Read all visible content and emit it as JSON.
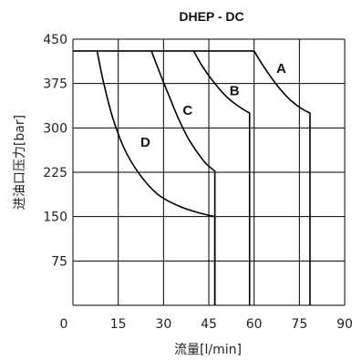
{
  "chart_data": {
    "type": "line",
    "title": "DHEP - DC",
    "xlabel": "流量[l/min]",
    "ylabel": "进油口压力[bar]",
    "xlim": [
      0,
      90
    ],
    "ylim": [
      0,
      450
    ],
    "xticks": [
      "0",
      "15",
      "30",
      "45",
      "60",
      "75",
      "90"
    ],
    "yticks": [
      "75",
      "150",
      "225",
      "300",
      "375",
      "450"
    ],
    "grid": true,
    "max_pressure": 430,
    "series": [
      {
        "name": "A",
        "points": [
          [
            60,
            430
          ],
          [
            63,
            405
          ],
          [
            67,
            376
          ],
          [
            71,
            352
          ],
          [
            75,
            335
          ],
          [
            78.5,
            325
          ],
          [
            78.5,
            0
          ]
        ],
        "label_at": [
          69,
          393
        ]
      },
      {
        "name": "B",
        "points": [
          [
            40,
            430
          ],
          [
            43,
            403
          ],
          [
            47,
            375
          ],
          [
            51,
            352
          ],
          [
            55,
            336
          ],
          [
            58.5,
            325
          ],
          [
            58.5,
            0
          ]
        ],
        "label_at": [
          53.5,
          355
        ]
      },
      {
        "name": "C",
        "points": [
          [
            26,
            430
          ],
          [
            29,
            390
          ],
          [
            32,
            352
          ],
          [
            35,
            315
          ],
          [
            38,
            284
          ],
          [
            41,
            260
          ],
          [
            44,
            240
          ],
          [
            47,
            227
          ],
          [
            47,
            0
          ]
        ],
        "label_at": [
          38,
          322
        ]
      },
      {
        "name": "D",
        "points": [
          [
            8,
            430
          ],
          [
            10,
            380
          ],
          [
            13,
            320
          ],
          [
            17,
            265
          ],
          [
            22,
            222
          ],
          [
            28,
            188
          ],
          [
            35,
            168
          ],
          [
            42,
            156
          ],
          [
            47,
            150
          ],
          [
            47,
            0
          ]
        ],
        "label_at": [
          24,
          268
        ]
      }
    ]
  }
}
